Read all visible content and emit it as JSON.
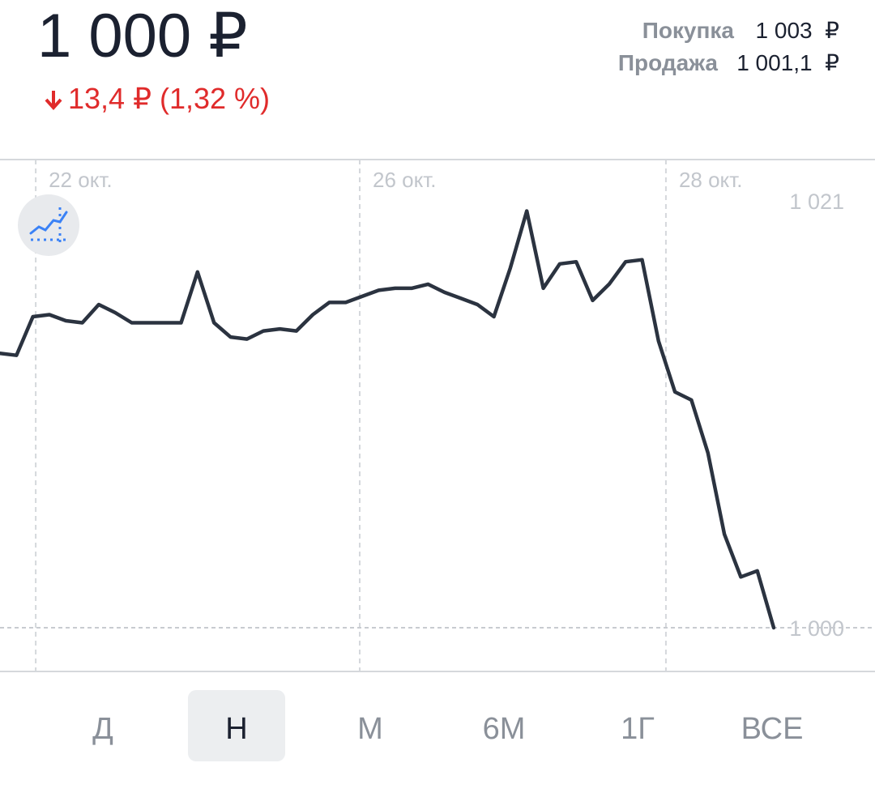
{
  "header": {
    "price": "1 000 ₽",
    "change": "13,4 ₽ (1,32 %)",
    "buy_label": "Покупка",
    "buy_value": "1 003  ₽",
    "sell_label": "Продажа",
    "sell_value": "1 001,1  ₽"
  },
  "chart_data": {
    "type": "line",
    "x": [
      0,
      1,
      2,
      3,
      4,
      5,
      6,
      7,
      8,
      9,
      10,
      11,
      12,
      13,
      14,
      15,
      16,
      17,
      18,
      19,
      20,
      21,
      22,
      23,
      24,
      25,
      26,
      27,
      28,
      29,
      30,
      31,
      32,
      33,
      34,
      35,
      36,
      37,
      38,
      39,
      40,
      41,
      42,
      43,
      44,
      45,
      46,
      47
    ],
    "series": [
      {
        "color": "#2b3340",
        "values": [
          1013.5,
          1013.4,
          1015.3,
          1015.4,
          1015.1,
          1015.0,
          1015.9,
          1015.5,
          1015.0,
          1015.0,
          1015.0,
          1015.0,
          1017.5,
          1015.0,
          1014.3,
          1014.2,
          1014.6,
          1014.7,
          1014.6,
          1015.4,
          1016.0,
          1016.0,
          1016.3,
          1016.6,
          1016.7,
          1016.7,
          1016.9,
          1016.5,
          1016.2,
          1015.9,
          1015.3,
          1017.7,
          1020.5,
          1016.7,
          1017.9,
          1018.0,
          1016.1,
          1016.9,
          1018.0,
          1018.1,
          1014.1,
          1011.6,
          1011.2,
          1008.6,
          1004.6,
          1002.5,
          1002.8,
          1000.0
        ]
      }
    ],
    "xlim": [
      0,
      53.15
    ],
    "xticks": [
      {
        "value": 2.17,
        "label": "22 окт."
      },
      {
        "value": 21.85,
        "label": "26 окт."
      },
      {
        "value": 40.45,
        "label": "28 окт."
      }
    ],
    "ylim": [
      997.85,
      1023.03
    ],
    "yticks": [
      {
        "value": 1021,
        "label": "1 021"
      },
      {
        "value": 1000,
        "label": "1 000"
      }
    ]
  },
  "tabs": {
    "items": [
      "Д",
      "Н",
      "М",
      "6М",
      "1Г",
      "ВСЕ"
    ],
    "active": 1
  }
}
